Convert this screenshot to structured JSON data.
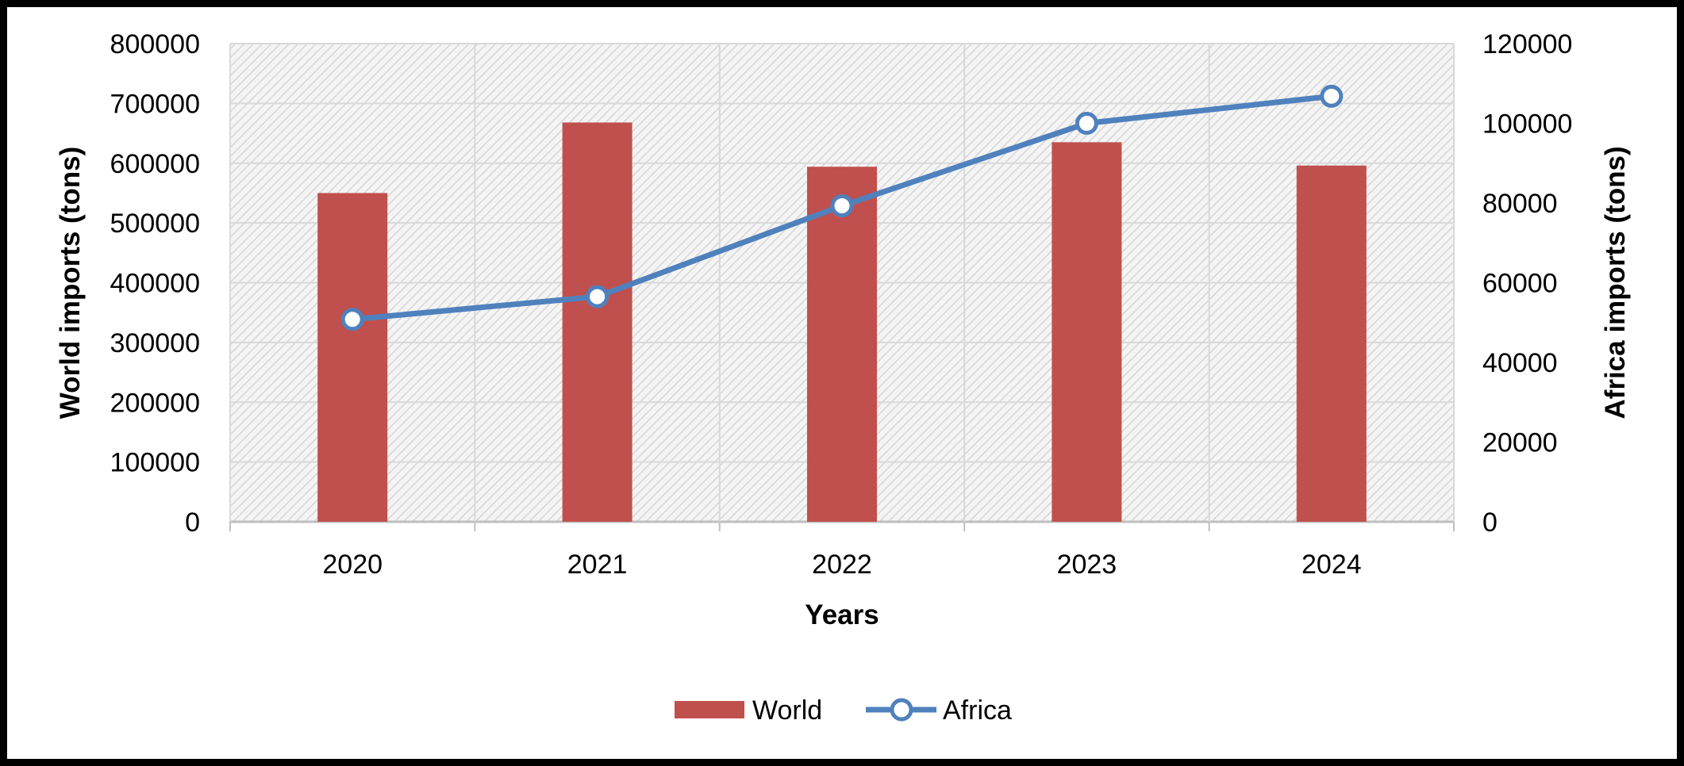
{
  "chart_data": {
    "type": "bar",
    "categories": [
      "2020",
      "2021",
      "2022",
      "2023",
      "2024"
    ],
    "series": [
      {
        "name": "World",
        "type": "bar",
        "axis": "left",
        "color": "#C0504D",
        "values": [
          550000,
          668000,
          594000,
          635000,
          596000
        ]
      },
      {
        "name": "Africa",
        "type": "line",
        "axis": "right",
        "color": "#4F81BD",
        "marker": "circle-hollow",
        "values": [
          50800,
          56500,
          79300,
          100000,
          106800
        ]
      }
    ],
    "xlabel": "Years",
    "ylabel": "World imports (tons)",
    "y2label": "Africa imports (tons)",
    "ylim": [
      0,
      800000
    ],
    "y2lim": [
      0,
      120000
    ],
    "yticks": [
      "0",
      "100000",
      "200000",
      "300000",
      "400000",
      "500000",
      "600000",
      "700000",
      "800000"
    ],
    "y2ticks": [
      "0",
      "20000",
      "40000",
      "60000",
      "80000",
      "100000",
      "120000"
    ],
    "grid": true,
    "plot_background": "hatched light gray",
    "legend_position": "bottom"
  }
}
